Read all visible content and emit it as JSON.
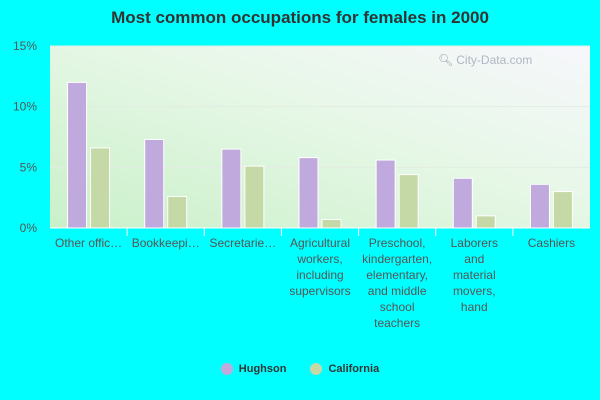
{
  "chart_data": {
    "type": "bar",
    "title": "Most common occupations for females in 2000",
    "xlabel": "",
    "ylabel": "",
    "ylim": [
      0,
      15
    ],
    "yticks": [
      "0%",
      "5%",
      "10%",
      "15%"
    ],
    "ytick_values": [
      0,
      5,
      10,
      15
    ],
    "categories": [
      "Other offic…",
      "Bookkeepi…",
      "Secretarie…",
      "Agricultural workers, including supervisors",
      "Preschool, kindergarten, elementary, and middle school teachers",
      "Laborers and material movers, hand",
      "Cashiers"
    ],
    "category_lines": [
      [
        "Other offic…"
      ],
      [
        "Bookkeepi…"
      ],
      [
        "Secretarie…"
      ],
      [
        "Agricultural",
        "workers,",
        "including",
        "supervisors"
      ],
      [
        "Preschool,",
        "kindergarten,",
        "elementary,",
        "and middle",
        "school",
        "teachers"
      ],
      [
        "Laborers",
        "and",
        "material",
        "movers,",
        "hand"
      ],
      [
        "Cashiers"
      ]
    ],
    "series": [
      {
        "name": "Hughson",
        "values": [
          12.0,
          7.3,
          6.5,
          5.8,
          5.6,
          4.1,
          3.6
        ],
        "color": "#c0a9dc"
      },
      {
        "name": "California",
        "values": [
          6.6,
          2.6,
          5.1,
          0.7,
          4.4,
          1.0,
          3.0
        ],
        "color": "#c5d9a6"
      }
    ],
    "legend_position": "bottom",
    "grid": true
  },
  "watermark": {
    "text": "City-Data.com",
    "icon": "magnifier-icon"
  }
}
